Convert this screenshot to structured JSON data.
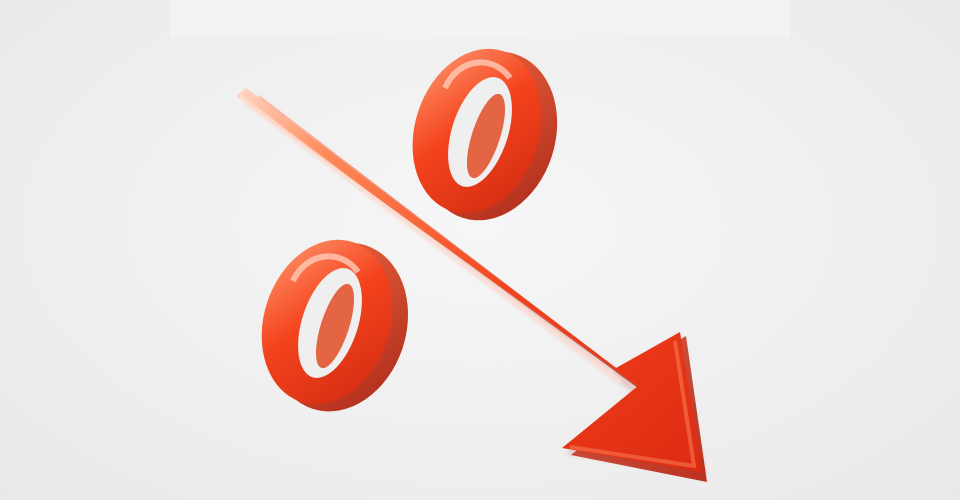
{
  "image": {
    "subject_icon": "percent-sign-with-downward-arrow",
    "colors": {
      "background": "#efefef",
      "accent_red": "#f4431c",
      "highlight_orange": "#ff8a5a",
      "shadow_red": "#b8220f"
    }
  }
}
